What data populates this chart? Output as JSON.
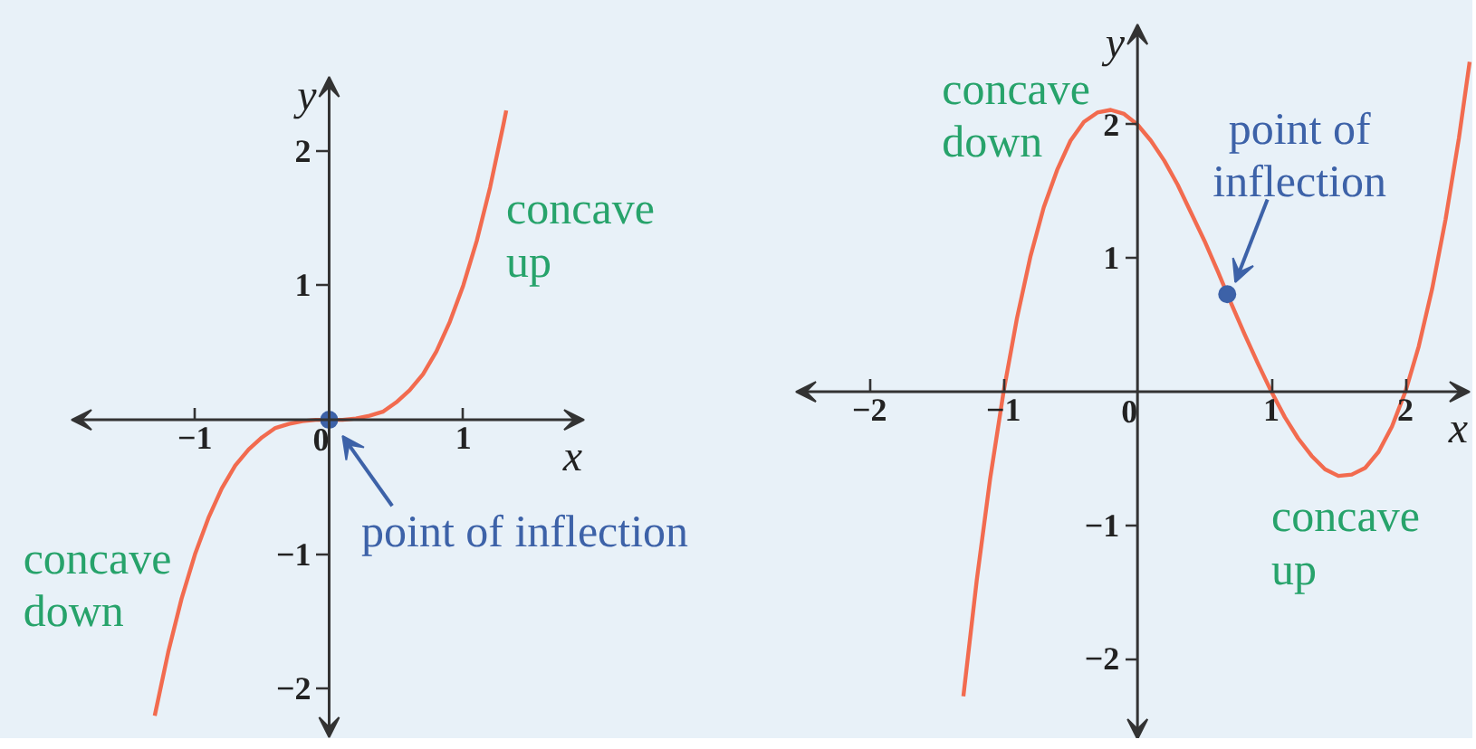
{
  "chart_data": [
    {
      "type": "line",
      "xlabel": "x",
      "ylabel": "y",
      "xlim": [
        -1.92,
        1.9
      ],
      "ylim": [
        -2.36,
        2.55
      ],
      "xticks": [
        -1,
        0,
        1
      ],
      "yticks": [
        -2,
        -1,
        1,
        2
      ],
      "annotations": [
        "concave up",
        {
          "text": "point of inflection",
          "x": 0,
          "y": 0
        },
        "concave down"
      ],
      "series": [
        {
          "color": "#f26b4f",
          "x": [
            -1.3,
            -1.2,
            -1.1,
            -1,
            -0.9,
            -0.8,
            -0.7,
            -0.6,
            -0.5,
            -0.4,
            -0.3,
            -0.2,
            -0.1,
            0,
            0.1,
            0.2,
            0.3,
            0.4,
            0.5,
            0.6,
            0.7,
            0.8,
            0.9,
            1,
            1.1,
            1.2,
            1.3,
            1.32
          ],
          "values": [
            -2.2,
            -1.73,
            -1.33,
            -1,
            -0.73,
            -0.51,
            -0.34,
            -0.22,
            -0.13,
            -0.06,
            -0.03,
            -0.01,
            0,
            0,
            0,
            0.01,
            0.03,
            0.06,
            0.13,
            0.22,
            0.34,
            0.51,
            0.73,
            1,
            1.33,
            1.73,
            2.2,
            2.3
          ]
        },
        {
          "type": "scatter",
          "color": "#3d62a8",
          "marker": "circle",
          "x": [
            0
          ],
          "values": [
            0
          ]
        }
      ]
    },
    {
      "type": "line",
      "xlabel": "x",
      "ylabel": "y",
      "xlim": [
        -2.55,
        2.48
      ],
      "ylim": [
        -2.6,
        2.75
      ],
      "xticks": [
        -2,
        -1,
        0,
        1,
        2
      ],
      "yticks": [
        -2,
        -1,
        1,
        2
      ],
      "annotations": [
        "concave down",
        {
          "text": "point of inflection",
          "x": 0.67,
          "y": 0.73
        },
        "concave up"
      ],
      "series": [
        {
          "color": "#f26b4f",
          "x": [
            -1.3,
            -1.2,
            -1.1,
            -1,
            -0.9,
            -0.8,
            -0.7,
            -0.6,
            -0.5,
            -0.4,
            -0.3,
            -0.2,
            -0.1,
            0,
            0.1,
            0.2,
            0.3,
            0.4,
            0.5,
            0.6,
            0.7,
            0.8,
            0.9,
            1,
            1.1,
            1.2,
            1.3,
            1.4,
            1.5,
            1.6,
            1.7,
            1.8,
            1.9,
            2,
            2.1,
            2.2,
            2.3,
            2.4,
            2.48
          ],
          "values": [
            -2.28,
            -1.41,
            -0.65,
            0,
            0.55,
            1.01,
            1.38,
            1.66,
            1.88,
            2.02,
            2.09,
            2.11,
            2.08,
            2,
            1.88,
            1.73,
            1.55,
            1.34,
            1.13,
            0.9,
            0.66,
            0.43,
            0.21,
            0,
            -0.19,
            -0.35,
            -0.48,
            -0.58,
            -0.63,
            -0.62,
            -0.57,
            -0.45,
            -0.26,
            0,
            0.34,
            0.77,
            1.29,
            1.9,
            2.47
          ]
        },
        {
          "type": "scatter",
          "color": "#3d62a8",
          "marker": "circle",
          "x": [
            0.67
          ],
          "values": [
            0.73
          ]
        }
      ]
    }
  ]
}
